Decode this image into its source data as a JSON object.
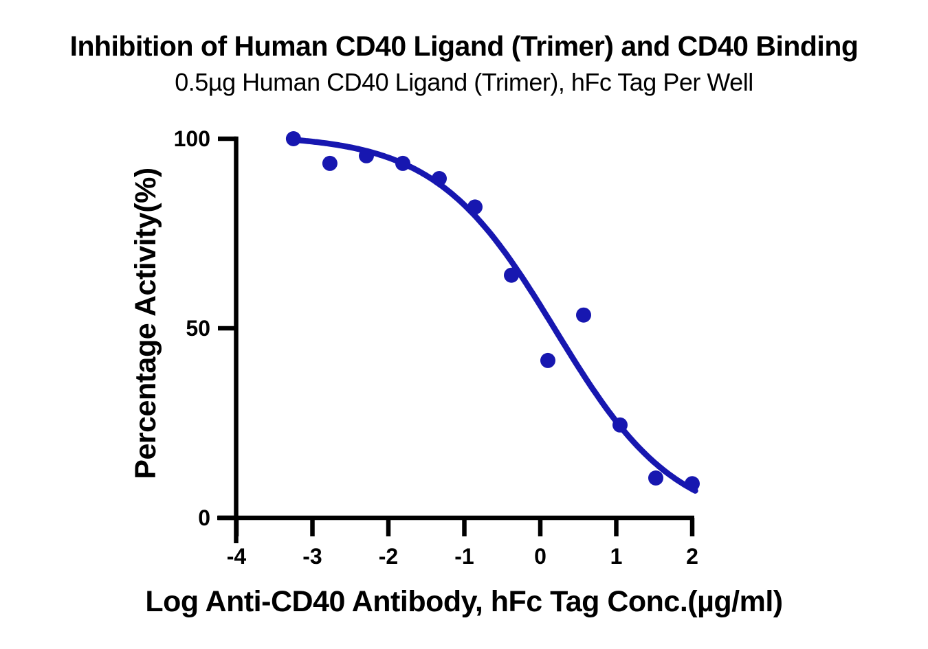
{
  "page": {
    "background_color": "#ffffff",
    "text_color": "#000000"
  },
  "chart_data": {
    "type": "scatter",
    "title": "Inhibition of Human CD40 Ligand (Trimer) and CD40 Binding",
    "subtitle": "0.5µg Human CD40 Ligand (Trimer), hFc Tag Per Well",
    "xlabel": "Log Anti-CD40 Antibody, hFc Tag Conc.(µg/ml)",
    "ylabel": "Percentage Activity(%)",
    "xlim": [
      -4,
      2
    ],
    "ylim": [
      0,
      100
    ],
    "x_ticks": [
      -4,
      -3,
      -2,
      -1,
      0,
      1,
      2
    ],
    "y_ticks": [
      0,
      50,
      100
    ],
    "grid": false,
    "legend": "none",
    "accent_color": "#1717B0",
    "axis_color": "#000000",
    "series": [
      {
        "name": "Percentage Activity",
        "marker": "circle",
        "color": "#1717B0",
        "points": [
          {
            "x": -3.25,
            "y": 100
          },
          {
            "x": -2.77,
            "y": 93.5
          },
          {
            "x": -2.29,
            "y": 95.5
          },
          {
            "x": -1.81,
            "y": 93.5
          },
          {
            "x": -1.33,
            "y": 89.5
          },
          {
            "x": -0.86,
            "y": 82
          },
          {
            "x": -0.38,
            "y": 64
          },
          {
            "x": 0.1,
            "y": 41.5
          },
          {
            "x": 0.57,
            "y": 53.5
          },
          {
            "x": 1.05,
            "y": 24.5
          },
          {
            "x": 1.52,
            "y": 10.5
          },
          {
            "x": 2.0,
            "y": 9
          }
        ]
      }
    ],
    "fit_curve": {
      "model": "four_parameter_logistic",
      "top": 101,
      "bottom": -2,
      "log_ic50": 0.2,
      "hill_slope": -0.55,
      "x_start": -3.27,
      "x_end": 2.04,
      "color": "#1717B0"
    }
  }
}
